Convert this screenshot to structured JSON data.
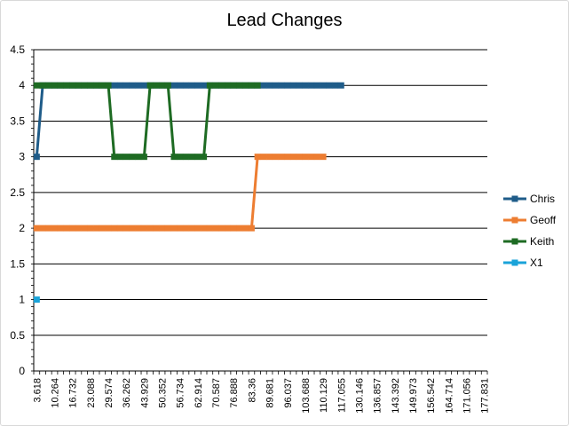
{
  "chart_data": {
    "type": "line",
    "title": "Lead Changes",
    "xlabel": "",
    "ylabel": "",
    "ylim": [
      0,
      4.5
    ],
    "yticks": [
      "0",
      "0.5",
      "1",
      "1.5",
      "2",
      "2.5",
      "3",
      "3.5",
      "4",
      "4.5"
    ],
    "grid": true,
    "legend_position": "right",
    "x_labels": [
      "3.618",
      "10.264",
      "16.732",
      "23.088",
      "29.574",
      "36.262",
      "43.929",
      "50.352",
      "56.734",
      "62.914",
      "70.587",
      "76.888",
      "83.36",
      "89.681",
      "96.037",
      "103.688",
      "110.129",
      "117.055",
      "130.146",
      "136.857",
      "143.392",
      "149.973",
      "156.542",
      "164.714",
      "171.056",
      "177.831"
    ],
    "series": [
      {
        "name": "Chris",
        "color": "#1f5c89",
        "values": [
          3,
          4,
          4,
          4,
          4,
          4,
          4,
          4,
          4,
          4,
          4,
          4,
          4,
          4,
          4,
          4,
          4,
          4,
          4,
          4,
          4,
          4,
          4,
          4,
          4,
          4,
          4,
          4,
          4,
          4,
          4,
          4,
          4,
          4,
          4,
          4,
          4,
          4,
          4,
          4,
          4,
          4,
          4,
          4,
          4,
          4,
          4,
          4,
          4,
          4,
          4,
          4
        ]
      },
      {
        "name": "Geoff",
        "color": "#ed7d31",
        "values": [
          2,
          2,
          2,
          2,
          2,
          2,
          2,
          2,
          2,
          2,
          2,
          2,
          2,
          2,
          2,
          2,
          2,
          2,
          2,
          2,
          2,
          2,
          2,
          2,
          2,
          2,
          2,
          2,
          2,
          2,
          2,
          2,
          2,
          2,
          2,
          2,
          2,
          3,
          3,
          3,
          3,
          3,
          3,
          3,
          3,
          3,
          3,
          3,
          3
        ]
      },
      {
        "name": "Keith",
        "color": "#1e6b23",
        "values": [
          4,
          4,
          4,
          4,
          4,
          4,
          4,
          4,
          4,
          4,
          4,
          4,
          4,
          3,
          3,
          3,
          3,
          3,
          3,
          4,
          4,
          4,
          4,
          3,
          3,
          3,
          3,
          3,
          3,
          4,
          4,
          4,
          4,
          4,
          4,
          4,
          4,
          4
        ]
      },
      {
        "name": "X1",
        "color": "#1aa3d9",
        "values": [
          1
        ]
      }
    ]
  }
}
